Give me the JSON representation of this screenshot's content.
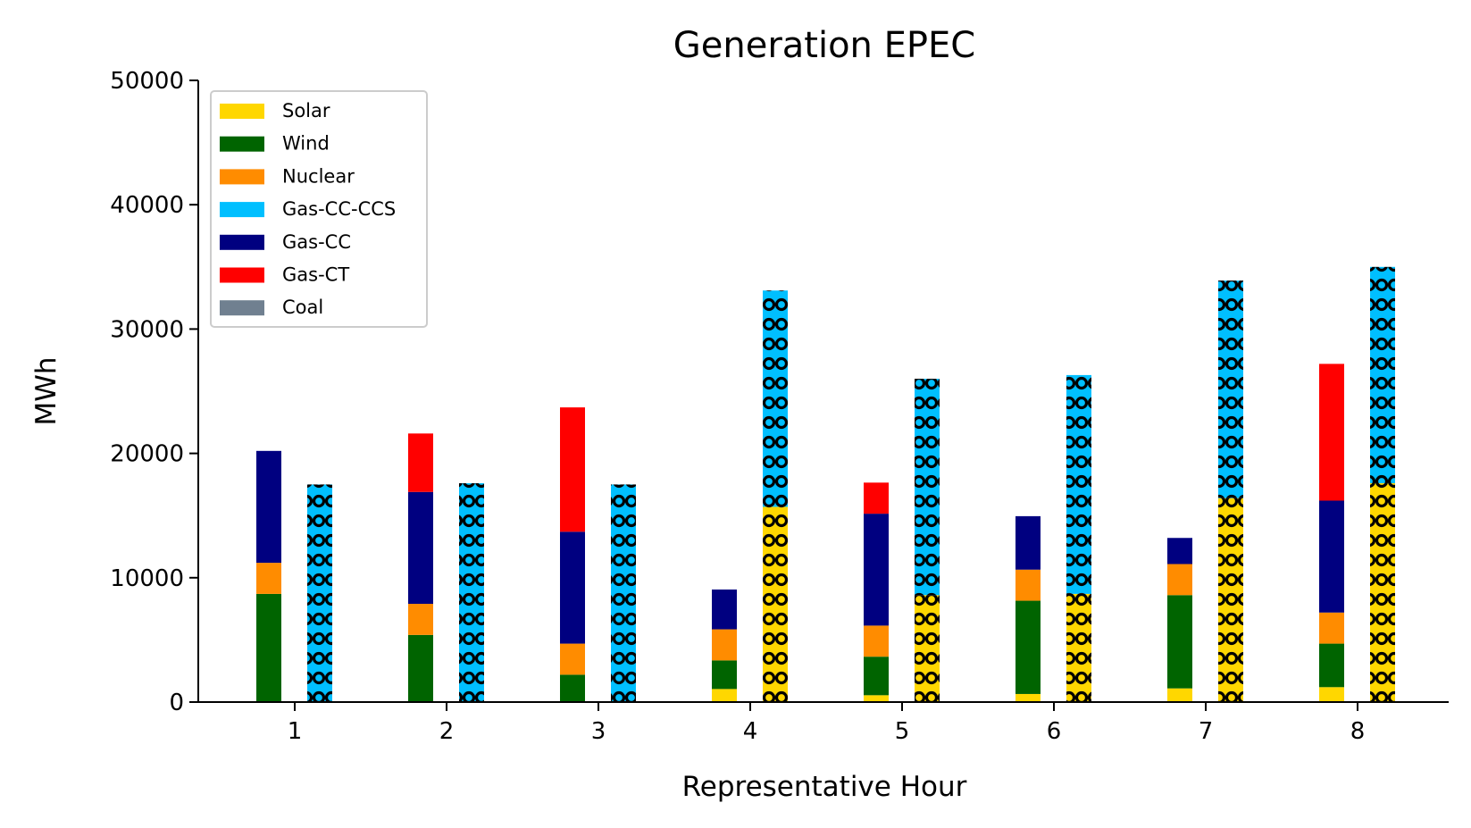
{
  "chart_data": {
    "type": "bar",
    "title": "Generation EPEC",
    "xlabel": "Representative Hour",
    "ylabel": "MWh",
    "ylim": [
      0,
      50000
    ],
    "yticks": [
      "0",
      "10000",
      "20000",
      "30000",
      "40000",
      "50000"
    ],
    "categories": [
      "1",
      "2",
      "3",
      "4",
      "5",
      "6",
      "7",
      "8"
    ],
    "grid": false,
    "legend_position": "upper-left",
    "series": [
      {
        "name": "Solar",
        "color": "#FFD700",
        "values": [
          0,
          0,
          0,
          1050,
          550,
          650,
          1100,
          1200
        ]
      },
      {
        "name": "Wind",
        "color": "#006400",
        "values": [
          8700,
          5400,
          2200,
          2300,
          3100,
          7500,
          7500,
          3500
        ]
      },
      {
        "name": "Nuclear",
        "color": "#FF8C00",
        "values": [
          2500,
          2500,
          2500,
          2500,
          2500,
          2500,
          2500,
          2500
        ]
      },
      {
        "name": "Gas-CC-CCS",
        "color": "#00BFFF",
        "values": [
          0,
          0,
          0,
          0,
          0,
          0,
          0,
          0
        ]
      },
      {
        "name": "Gas-CC",
        "color": "#000080",
        "values": [
          9000,
          9000,
          9000,
          3200,
          9000,
          4300,
          2100,
          9000
        ]
      },
      {
        "name": "Gas-CT",
        "color": "#FF0000",
        "values": [
          0,
          4700,
          10000,
          0,
          2500,
          0,
          0,
          11000
        ]
      },
      {
        "name": "Coal",
        "color": "#708090",
        "values": [
          0,
          0,
          0,
          0,
          0,
          0,
          0,
          0
        ]
      }
    ],
    "hatched_bars": {
      "pattern": "circles",
      "stack": [
        {
          "color": "#FFD700",
          "values": [
            0,
            0,
            0,
            15700,
            8600,
            8700,
            16400,
            17600
          ]
        },
        {
          "color": "#00BFFF",
          "values": [
            17500,
            17600,
            17500,
            17400,
            17400,
            17600,
            17500,
            17400
          ]
        }
      ]
    }
  }
}
